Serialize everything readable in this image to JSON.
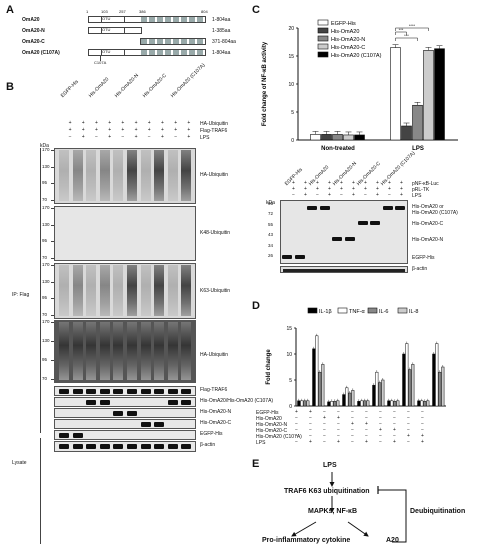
{
  "panels": {
    "a": "A",
    "b": "B",
    "c": "C",
    "d": "D",
    "e": "E"
  },
  "panel_a": {
    "constructs": [
      {
        "name": "OmA20",
        "range": "1-804aa"
      },
      {
        "name": "OmA20-N",
        "range": "1-385aa"
      },
      {
        "name": "OmA20-C",
        "range": "371-804aa"
      },
      {
        "name": "OmA20 (C107A)",
        "range": "1-804aa"
      }
    ],
    "positions": [
      "1",
      "103",
      "257",
      "386",
      "804"
    ],
    "domain_label": "OTU",
    "mutation": "C107A"
  },
  "panel_b": {
    "lanes": [
      "EGFP-His",
      "His-OmA20",
      "His-OmA20-N",
      "His-OmA20-C",
      "His-OmA20 (C107A)"
    ],
    "treatments": [
      "HA-Ubiquitin",
      "Flag-TRAF6",
      "LPS"
    ],
    "rows": [
      [
        "+",
        "+",
        "+",
        "+",
        "+",
        "+",
        "+",
        "+",
        "+",
        "+"
      ],
      [
        "+",
        "+",
        "+",
        "+",
        "+",
        "+",
        "+",
        "+",
        "+",
        "+"
      ],
      [
        "−",
        "+",
        "−",
        "+",
        "−",
        "+",
        "−",
        "+",
        "−",
        "+"
      ]
    ],
    "kda_label": "kDa",
    "ip_label": "IP: Flag",
    "lysate_label": "Lysate",
    "blots": [
      {
        "label": "HA-Ubiquitin",
        "marks": [
          "170",
          "130",
          "95",
          "70"
        ]
      },
      {
        "label": "K48-Ubiquitin",
        "marks": [
          "170",
          "130",
          "95",
          "70"
        ]
      },
      {
        "label": "K63-Ubiquitin",
        "marks": [
          "170",
          "130",
          "95",
          "70"
        ]
      },
      {
        "label": "HA-Ubiquitin",
        "marks": [
          "170",
          "130",
          "95",
          "70"
        ]
      }
    ],
    "strips": [
      "Flag-TRAF6",
      "His-OmA20/His-OmA20 (C107A)",
      "His-OmA20-N",
      "His-OmA20-C",
      "EGFP-His",
      "β-actin"
    ]
  },
  "panel_c": {
    "chart_data": {
      "type": "bar",
      "ylabel": "Fold change of NF-κB activity",
      "categories": [
        "Non-treated",
        "LPS"
      ],
      "ylim": [
        0,
        20
      ],
      "yticks": [
        0,
        5,
        10,
        15,
        20
      ],
      "legend_placement": "top-right",
      "series": [
        {
          "name": "EGFP-His",
          "color": "#ffffff",
          "values": [
            1.0,
            16.5
          ]
        },
        {
          "name": "His-OmA20",
          "color": "#444444",
          "values": [
            1.0,
            2.5
          ]
        },
        {
          "name": "His-OmA20-N",
          "color": "#888888",
          "values": [
            1.0,
            6.2
          ]
        },
        {
          "name": "His-OmA20-C",
          "color": "#cccccc",
          "values": [
            0.9,
            16.0
          ]
        },
        {
          "name": "His-OmA20 (C107A)",
          "color": "#000000",
          "values": [
            0.9,
            16.3
          ]
        }
      ],
      "significance": [
        "***",
        "***",
        "****"
      ]
    },
    "blot": {
      "lanes": [
        "EGFP-His",
        "His-OmA20",
        "His-OmA20-N",
        "His-OmA20-C",
        "His-OmA20 (C107A)"
      ],
      "treatments": [
        "pNF-κB-Luc",
        "pRL-TK",
        "LPS"
      ],
      "rows": [
        [
          "+",
          "+",
          "+",
          "+",
          "+",
          "+",
          "+",
          "+",
          "+",
          "+"
        ],
        [
          "+",
          "+",
          "+",
          "+",
          "+",
          "+",
          "+",
          "+",
          "+",
          "+"
        ],
        [
          "−",
          "+",
          "−",
          "+",
          "−",
          "+",
          "−",
          "+",
          "−",
          "+"
        ]
      ],
      "kda_label": "kDa",
      "marks": [
        "95",
        "72",
        "55",
        "43",
        "34",
        "26"
      ],
      "labels": [
        "His-OmA20 or\nHis-OmA20 (C107A)",
        "His-OmA20-C",
        "His-OmA20-N",
        "EGFP-His"
      ],
      "actin": "β-actin"
    }
  },
  "panel_d": {
    "chart_data": {
      "type": "bar",
      "ylabel": "Fold change",
      "ylim": [
        0,
        15
      ],
      "yticks": [
        0,
        5,
        10,
        15
      ],
      "legend_placement": "top",
      "series": [
        {
          "name": "IL-1β",
          "color": "#000000",
          "values": [
            1,
            11,
            0.8,
            2.2,
            0.9,
            4,
            1,
            10,
            1,
            10
          ]
        },
        {
          "name": "TNF-α",
          "color": "#ffffff",
          "values": [
            1,
            13.5,
            0.9,
            3.5,
            1,
            6.5,
            1,
            12,
            1,
            12
          ]
        },
        {
          "name": "IL-6",
          "color": "#888888",
          "values": [
            1,
            6.5,
            0.9,
            2.5,
            1,
            4.5,
            0.9,
            7,
            0.9,
            6.5
          ]
        },
        {
          "name": "IL-8",
          "color": "#cccccc",
          "values": [
            1,
            8,
            1,
            3,
            1,
            5,
            1,
            8,
            1,
            7.5
          ]
        }
      ],
      "treatments": [
        "EGFP-His",
        "His-OmA20",
        "His-OmA20-N",
        "His-OmA20-C",
        "His-OmA20 (C107A)",
        "LPS"
      ],
      "rows": [
        [
          "+",
          "+",
          "−",
          "−",
          "−",
          "−",
          "−",
          "−",
          "−",
          "−"
        ],
        [
          "−",
          "−",
          "+",
          "+",
          "−",
          "−",
          "−",
          "−",
          "−",
          "−"
        ],
        [
          "−",
          "−",
          "−",
          "−",
          "+",
          "+",
          "−",
          "−",
          "−",
          "−"
        ],
        [
          "−",
          "−",
          "−",
          "−",
          "−",
          "−",
          "+",
          "+",
          "−",
          "−"
        ],
        [
          "−",
          "−",
          "−",
          "−",
          "−",
          "−",
          "−",
          "−",
          "+",
          "+"
        ],
        [
          "−",
          "+",
          "−",
          "+",
          "−",
          "+",
          "−",
          "+",
          "−",
          "+"
        ]
      ]
    }
  },
  "panel_e": {
    "nodes": [
      "LPS",
      "TRAF6 K63 ubiquitination",
      "MAPKs, NF-κB",
      "Pro-inflammatory cytokine",
      "A20"
    ],
    "side": "Deubiquitination"
  }
}
